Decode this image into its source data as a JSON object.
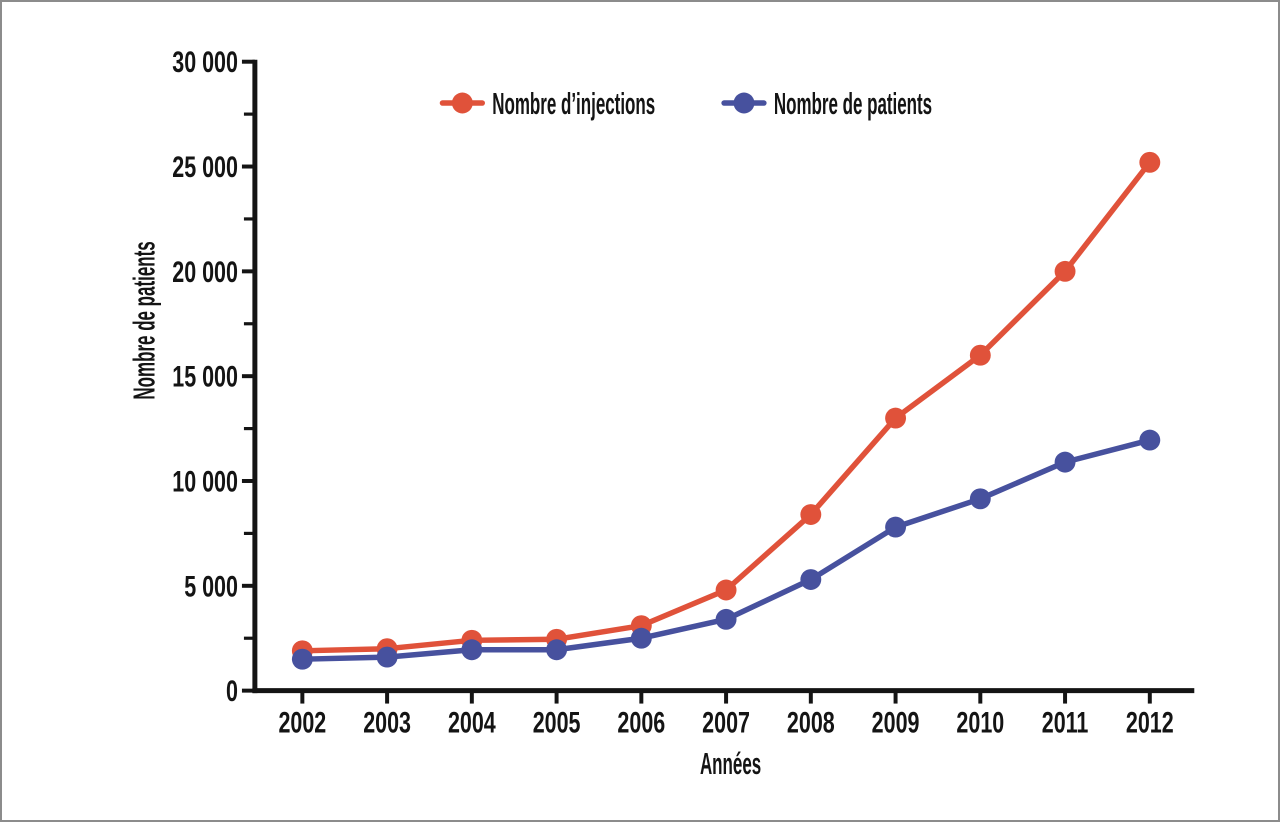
{
  "frame": {
    "background": "#ffffff",
    "border_color": "#8c8c8c"
  },
  "chart_data": {
    "type": "line",
    "title": "",
    "xlabel": "Années",
    "ylabel": "Nombre de patients",
    "x": [
      2002,
      2003,
      2004,
      2005,
      2006,
      2007,
      2008,
      2009,
      2010,
      2011,
      2012
    ],
    "x_tick_labels": [
      "2002",
      "2003",
      "2004",
      "2005",
      "2006",
      "2007",
      "2008",
      "2009",
      "2010",
      "2011",
      "2012"
    ],
    "ylim": [
      0,
      30000
    ],
    "y_major_step": 5000,
    "y_minor_step": 2500,
    "y_tick_labels": [
      "0",
      "5 000",
      "10 000",
      "15 000",
      "20 000",
      "25 000",
      "30 000"
    ],
    "grid": false,
    "legend_position": "top-inside",
    "axis_color": "#141414",
    "text_color": "#141414",
    "series": [
      {
        "name": "Nombre d’injections",
        "color": "#e0523a",
        "values": [
          1900,
          2000,
          2400,
          2450,
          3100,
          4800,
          8400,
          13000,
          16000,
          20000,
          25200
        ]
      },
      {
        "name": "Nombre de patients",
        "color": "#47519e",
        "values": [
          1500,
          1600,
          1950,
          1950,
          2500,
          3400,
          5300,
          7800,
          9150,
          10900,
          11950
        ]
      }
    ]
  }
}
